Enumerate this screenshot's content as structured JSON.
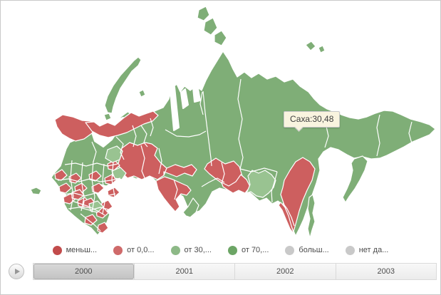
{
  "tooltip": {
    "text": "Саха:30,48"
  },
  "legend": {
    "items": [
      {
        "label": "меньш...",
        "color": "#c24b4b"
      },
      {
        "label": "от 0,0...",
        "color": "#cf6a6a"
      },
      {
        "label": "от 30,...",
        "color": "#8db987"
      },
      {
        "label": "от 70,...",
        "color": "#6ca565"
      },
      {
        "label": "больш...",
        "color": "#c9c9c9"
      },
      {
        "label": "нет да...",
        "color": "#c9c9c9"
      }
    ]
  },
  "timeline": {
    "years": [
      {
        "label": "2000",
        "selected": true
      },
      {
        "label": "2001",
        "selected": false
      },
      {
        "label": "2002",
        "selected": false
      },
      {
        "label": "2003",
        "selected": false
      }
    ]
  },
  "chart_data": {
    "type": "choropleth_map",
    "region_shown": "Россия",
    "tooltip_datum": {
      "region": "Саха",
      "value": "30,48"
    },
    "legend_categories": [
      "меньш...",
      "от 0,0...",
      "от 30,...",
      "от 70,...",
      "больш...",
      "нет да..."
    ],
    "timeline_years": [
      "2000",
      "2001",
      "2002",
      "2003"
    ],
    "selected_year": "2000",
    "palette": {
      "red": "#cd5f5f",
      "green": "#7fae77",
      "lightgreen": "#99c391",
      "sea": "#ffffff"
    },
    "regions": {
      "mainland": "green",
      "white_sea": "sea",
      "ob_gulf1": "sea",
      "ob_gulf2": "sea",
      "yenisei_gulf": "sea",
      "novaya_zemlya": "green",
      "nz2": "green",
      "vaygach": "green",
      "isl1": "green",
      "isl2": "green",
      "isl3": "green",
      "ns1": "green",
      "ns2": "green",
      "kaliningrad": "green",
      "kamchatka": "green",
      "sakhalin": "green",
      "murmansk": "red",
      "arkhangelsk_coast": "red",
      "ural": "red",
      "tomsk": "red",
      "omsk_novosibirsk": "red",
      "irkutsk": "red",
      "buryatia": "red",
      "khabarovsk": "red",
      "primorye": "red",
      "pskov": "red",
      "tver": "red",
      "smolensk": "red",
      "moscow": "red",
      "bryansk": "red",
      "voronezh": "red",
      "volga1": "red",
      "volga2": "red",
      "volga3": "red",
      "nizhny": "red",
      "kirov_south": "red",
      "astrakhan": "red",
      "caucasus1": "red",
      "caucasus2": "red",
      "caucasus3": "red",
      "caucasus4": "red",
      "caucasus5": "red",
      "perm": "lightgreen",
      "bashkiria": "lightgreen",
      "kalmykia": "lightgreen",
      "zabaikalsky": "lightgreen",
      "altai_republic": "green"
    }
  }
}
